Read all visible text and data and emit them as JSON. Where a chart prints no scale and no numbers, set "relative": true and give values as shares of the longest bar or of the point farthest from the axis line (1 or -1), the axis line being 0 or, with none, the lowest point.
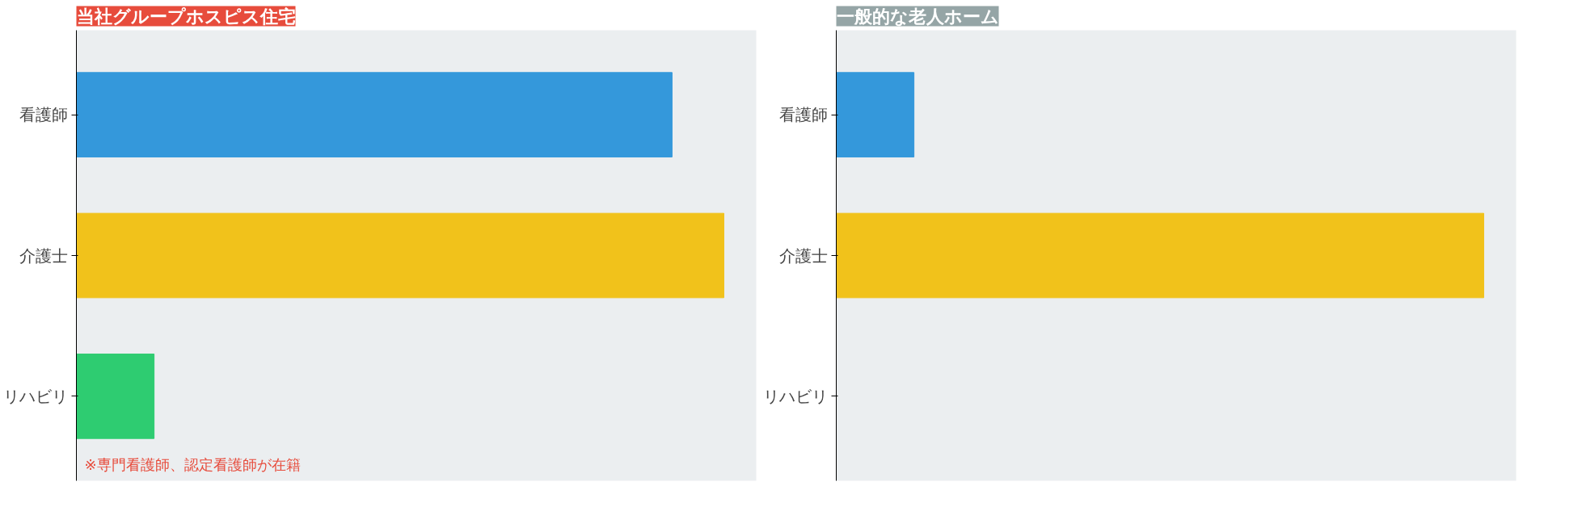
{
  "chart_data": [
    {
      "type": "bar",
      "title": "当社グループホスピス住宅",
      "orientation": "horizontal",
      "relative": true,
      "categories": [
        "看護師",
        "介護士",
        "リハビリ"
      ],
      "values": [
        0.92,
        1,
        0.12
      ],
      "colors": [
        "#3498db",
        "#f1c21b",
        "#2ecc71"
      ],
      "annotations": [
        "※専門看護師、認定看護師が在籍"
      ],
      "grid": false
    },
    {
      "type": "bar",
      "title": "一般的な老人ホーム",
      "orientation": "horizontal",
      "relative": true,
      "categories": [
        "看護師",
        "介護士",
        "リハビリ"
      ],
      "values": [
        0.12,
        1,
        0
      ],
      "colors": [
        "#3498db",
        "#f1c21b",
        "#2ecc71"
      ],
      "grid": false
    }
  ]
}
